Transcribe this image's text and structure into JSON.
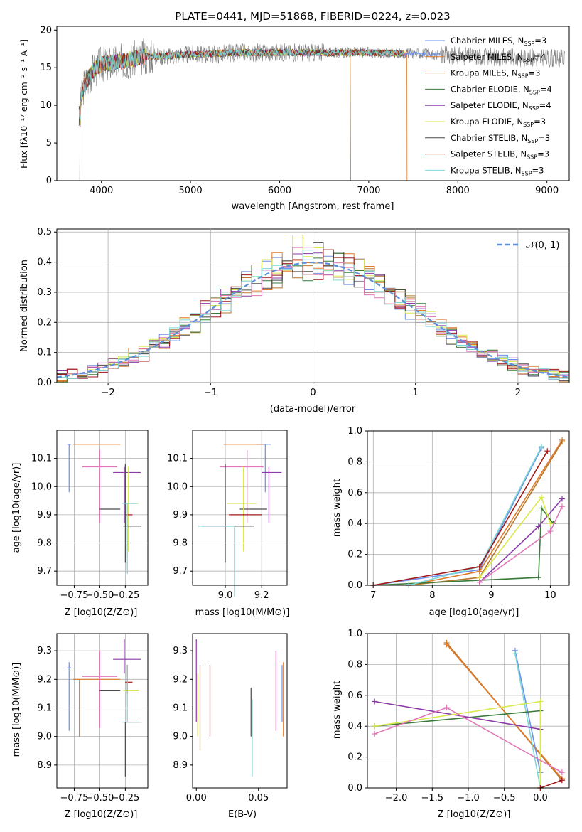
{
  "colors": {
    "c1": "#6b8fe8",
    "c2": "#b9a200",
    "c3": "#b9772a",
    "c4": "#3a7a3a",
    "c5": "#8c3aa8",
    "c6": "#d9e84a",
    "c7": "#4a4a4a",
    "c8": "#a01818",
    "c9": "#7fd8d8",
    "pink": "#e078b8",
    "orange": "#e07a2a",
    "gray": "#808080",
    "normal": "#5b8fd8"
  },
  "panel1": {
    "title": "PLATE=0441, MJD=51868, FIBERID=0224, z=0.023",
    "xlabel": "wavelength [Angstrom, rest frame]",
    "ylabel": "Flux [fλ10⁻¹⁷ erg cm⁻² s⁻¹ A⁻¹]",
    "xticks": [
      "4000",
      "5000",
      "6000",
      "7000",
      "8000",
      "9000"
    ],
    "yticks": [
      "0",
      "5",
      "10",
      "15",
      "20"
    ],
    "legend": [
      "Chabrier MILES, N_SSP=3",
      "Salpeter MILES, N_SSP=4",
      "Kroupa MILES, N_SSP=3",
      "Chabrier ELODIE, N_SSP=4",
      "Salpeter ELODIE, N_SSP=4",
      "Kroupa ELODIE, N_SSP=3",
      "Chabrier STELIB, N_SSP=3",
      "Salpeter STELIB, N_SSP=3",
      "Kroupa STELIB, N_SSP=3"
    ]
  },
  "panel2": {
    "xlabel": "(data-model)/error",
    "ylabel": "Normed distribution",
    "xticks": [
      "−2",
      "−1",
      "0",
      "1",
      "2"
    ],
    "yticks": [
      "0.0",
      "0.1",
      "0.2",
      "0.3",
      "0.4",
      "0.5"
    ],
    "legend": "𝒩(0, 1)"
  },
  "panel3": {
    "xlabel": "Z [log10(Z/Z⊙)]",
    "ylabel": "age  [log10(age/yr)]",
    "xticks": [
      "−0.75",
      "−0.50",
      "−0.25"
    ],
    "yticks": [
      "9.7",
      "9.8",
      "9.9",
      "10.0",
      "10.1"
    ]
  },
  "panel4": {
    "xlabel": "mass [log10(M/M⊙)]",
    "xticks": [
      "9.0",
      "9.2"
    ],
    "yticks": [
      "9.7",
      "9.8",
      "9.9",
      "10.0",
      "10.1"
    ]
  },
  "panel5": {
    "xlabel": "age  [log10(age/yr)]",
    "ylabel": "mass weight",
    "xticks": [
      "7",
      "8",
      "9",
      "10"
    ],
    "yticks": [
      "0.0",
      "0.2",
      "0.4",
      "0.6",
      "0.8",
      "1.0"
    ]
  },
  "panel6": {
    "xlabel": "Z [log10(Z/Z⊙)]",
    "ylabel": "mass [log10(M/M⊙)]",
    "xticks": [
      "−0.75",
      "−0.50",
      "−0.25"
    ],
    "yticks": [
      "8.9",
      "9.0",
      "9.1",
      "9.2",
      "9.3"
    ]
  },
  "panel7": {
    "xlabel": "E(B-V)",
    "xticks": [
      "0.00",
      "0.05"
    ],
    "yticks": [
      "8.9",
      "9.0",
      "9.1",
      "9.2",
      "9.3"
    ]
  },
  "panel8": {
    "xlabel": "Z [log10(Z/Z⊙)]",
    "ylabel": "mass weight",
    "xticks": [
      "−2.0",
      "−1.5",
      "−1.0",
      "−0.5",
      "0.0"
    ],
    "yticks": [
      "0.0",
      "0.2",
      "0.4",
      "0.6",
      "0.8",
      "1.0"
    ]
  },
  "chart_data": [
    {
      "type": "line",
      "title": "PLATE=0441, MJD=51868, FIBERID=0224, z=0.023",
      "xlabel": "wavelength [Angstrom, rest frame]",
      "ylabel": "Flux [fλ10⁻¹⁷ erg cm⁻² s⁻¹ A⁻¹]",
      "xlim": [
        3500,
        9250
      ],
      "ylim": [
        0,
        20.5
      ],
      "series": [
        {
          "name": "Chabrier MILES, N_SSP=3"
        },
        {
          "name": "Salpeter MILES, N_SSP=4"
        },
        {
          "name": "Kroupa MILES, N_SSP=3"
        },
        {
          "name": "Chabrier ELODIE, N_SSP=4"
        },
        {
          "name": "Salpeter ELODIE, N_SSP=4"
        },
        {
          "name": "Kroupa ELODIE, N_SSP=3"
        },
        {
          "name": "Chabrier STELIB, N_SSP=3"
        },
        {
          "name": "Salpeter STELIB, N_SSP=3"
        },
        {
          "name": "Kroupa STELIB, N_SSP=3"
        }
      ],
      "continuum": {
        "x": [
          3740,
          3800,
          3900,
          4000,
          4100,
          4200,
          4300,
          4500,
          4800,
          5000,
          5200,
          5500,
          6000,
          6500,
          7000,
          7400,
          7800,
          8200,
          8800,
          9200
        ],
        "y": [
          8.5,
          12.5,
          14.5,
          15.5,
          15.6,
          15.8,
          16.0,
          16.5,
          16.6,
          16.8,
          16.8,
          17.0,
          17.0,
          17.0,
          17.0,
          16.9,
          16.7,
          16.5,
          16.3,
          16.2
        ]
      },
      "cutoffs": {
        "kroupa_miles": 6800,
        "salpeter_miles": 7430
      },
      "legend_position": "upper right"
    },
    {
      "type": "bar",
      "xlabel": "(data-model)/error",
      "ylabel": "Normed distribution",
      "xlim": [
        -2.5,
        2.5
      ],
      "ylim": [
        0,
        0.51
      ],
      "bin_width": 0.1,
      "reference": {
        "name": "𝒩(0, 1)",
        "mu": 0,
        "sigma": 1
      },
      "series_count": 9,
      "legend_position": "upper right"
    },
    {
      "type": "scatter",
      "xlabel": "Z [log10(Z/Z⊙)]",
      "ylabel": "age  [log10(age/yr)]",
      "xlim": [
        -0.92,
        -0.03
      ],
      "ylim": [
        9.65,
        10.2
      ],
      "points": [
        {
          "x": -0.8,
          "y": 10.15,
          "xerr": [
            0.02,
            0.02
          ],
          "yerr": [
            0.17,
            0.0
          ]
        },
        {
          "x": -0.7,
          "y": 10.15,
          "xerr": [
            0.06,
            0.4
          ],
          "yerr": [
            0.0,
            0.0
          ]
        },
        {
          "x": -0.5,
          "y": 10.07,
          "xerr": [
            0.17,
            0.17
          ],
          "yerr": [
            0.2,
            0.06
          ]
        },
        {
          "x": -0.42,
          "y": 9.92,
          "xerr": [
            0.08,
            0.12
          ],
          "yerr": [
            0.0,
            0.0
          ]
        },
        {
          "x": -0.26,
          "y": 10.05,
          "xerr": [
            0.11,
            0.16
          ],
          "yerr": [
            0.18,
            0.02
          ]
        },
        {
          "x": -0.22,
          "y": 9.94,
          "xerr": [
            0.05,
            0.1
          ],
          "yerr": [
            0.17,
            0.13
          ]
        },
        {
          "x": -0.23,
          "y": 9.9,
          "xerr": [
            0.02,
            0.05
          ],
          "yerr": [
            0.0,
            0.0
          ]
        },
        {
          "x": -0.25,
          "y": 9.86,
          "xerr": [
            0.02,
            0.16
          ],
          "yerr": [
            0.13,
            0.22
          ]
        },
        {
          "x": -0.23,
          "y": 9.94,
          "xerr": [
            0.05,
            0.1
          ],
          "yerr": [
            0.25,
            0.0
          ]
        }
      ]
    },
    {
      "type": "scatter",
      "xlabel": "mass [log10(M/M⊙)]",
      "xlim": [
        8.82,
        9.34
      ],
      "ylim": [
        9.65,
        10.2
      ],
      "points": [
        {
          "x": 9.22,
          "y": 10.15,
          "xerr": [
            0.05,
            0.03
          ]
        },
        {
          "x": 9.1,
          "y": 10.15,
          "xerr": [
            0.11,
            0.11
          ]
        },
        {
          "x": 9.12,
          "y": 10.07,
          "xerr": [
            0.15,
            0.09
          ]
        },
        {
          "x": 9.18,
          "y": 9.92,
          "xerr": [
            0.1,
            0.05
          ]
        },
        {
          "x": 9.24,
          "y": 10.05,
          "xerr": [
            0.04,
            0.07
          ]
        },
        {
          "x": 9.1,
          "y": 9.94,
          "xerr": [
            0.09,
            0.07
          ]
        },
        {
          "x": 9.1,
          "y": 9.9,
          "xerr": [
            0.08,
            0.1
          ]
        },
        {
          "x": 9.0,
          "y": 9.86,
          "xerr": [
            0.13,
            0.16
          ]
        },
        {
          "x": 9.05,
          "y": 9.86,
          "xerr": [
            0.2,
            0.0
          ]
        }
      ]
    },
    {
      "type": "line",
      "xlabel": "age  [log10(age/yr)]",
      "ylabel": "mass weight",
      "xlim": [
        6.9,
        10.32
      ],
      "ylim": [
        0,
        1.0
      ],
      "series": [
        {
          "x": [
            7.0,
            8.8,
            9.85
          ],
          "y": [
            0.0,
            0.1,
            0.89
          ]
        },
        {
          "x": [
            7.6,
            8.8,
            10.2
          ],
          "y": [
            0.0,
            0.09,
            0.94
          ]
        },
        {
          "x": [
            7.6,
            8.8,
            10.2
          ],
          "y": [
            0.0,
            0.05,
            0.93
          ]
        },
        {
          "x": [
            7.0,
            9.8,
            9.85,
            10.05
          ],
          "y": [
            0.0,
            0.05,
            0.5,
            0.4
          ]
        },
        {
          "x": [
            8.8,
            9.8,
            10.2
          ],
          "y": [
            0.02,
            0.38,
            0.56
          ]
        },
        {
          "x": [
            8.8,
            9.85,
            10.0
          ],
          "y": [
            0.05,
            0.57,
            0.4
          ]
        },
        {
          "x": [
            7.6,
            8.8,
            9.85
          ],
          "y": [
            0.0,
            0.12,
            0.9
          ]
        },
        {
          "x": [
            7.0,
            8.8,
            9.95
          ],
          "y": [
            0.0,
            0.12,
            0.87
          ]
        },
        {
          "x": [
            8.8,
            10.0,
            10.2
          ],
          "y": [
            0.02,
            0.35,
            0.51
          ]
        }
      ]
    },
    {
      "type": "scatter",
      "xlabel": "Z [log10(Z/Z⊙)]",
      "ylabel": "mass [log10(M/M⊙)]",
      "xlim": [
        -0.92,
        -0.03
      ],
      "ylim": [
        8.82,
        9.36
      ],
      "points": [
        {
          "x": -0.8,
          "y": 9.24
        },
        {
          "x": -0.7,
          "y": 9.2
        },
        {
          "x": -0.5,
          "y": 9.21
        },
        {
          "x": -0.42,
          "y": 9.16
        },
        {
          "x": -0.26,
          "y": 9.27
        },
        {
          "x": -0.22,
          "y": 9.16
        },
        {
          "x": -0.23,
          "y": 9.19
        },
        {
          "x": -0.25,
          "y": 9.05
        },
        {
          "x": -0.23,
          "y": 9.05
        }
      ]
    },
    {
      "type": "scatter",
      "xlabel": "E(B-V)",
      "xlim": [
        -0.003,
        0.073
      ],
      "ylim": [
        8.82,
        9.36
      ],
      "points": [
        {
          "x": 0.0,
          "y": 9.3
        },
        {
          "x": 0.003,
          "y": 9.15
        },
        {
          "x": 0.011,
          "y": 9.13
        },
        {
          "x": 0.044,
          "y": 9.1
        },
        {
          "x": 0.045,
          "y": 9.0
        },
        {
          "x": 0.064,
          "y": 9.16
        },
        {
          "x": 0.07,
          "y": 9.13
        }
      ]
    },
    {
      "type": "line",
      "xlabel": "Z [log10(Z/Z⊙)]",
      "ylabel": "mass weight",
      "xlim": [
        -2.4,
        0.4
      ],
      "ylim": [
        0,
        1.0
      ],
      "series": [
        {
          "x": [
            -1.3,
            0.3
          ],
          "y": [
            0.94,
            0.05
          ]
        },
        {
          "x": [
            -1.3,
            0.3
          ],
          "y": [
            0.93,
            0.06
          ]
        },
        {
          "x": [
            -0.35,
            0.0
          ],
          "y": [
            0.89,
            0.1
          ]
        },
        {
          "x": [
            -0.35,
            0.0
          ],
          "y": [
            0.87,
            0.0
          ]
        },
        {
          "x": [
            -2.3,
            0.0
          ],
          "y": [
            0.4,
            0.5
          ]
        },
        {
          "x": [
            -2.3,
            0.0
          ],
          "y": [
            0.56,
            0.38
          ]
        },
        {
          "x": [
            -2.3,
            0.0,
            0.0
          ],
          "y": [
            0.4,
            0.56,
            0.0
          ]
        },
        {
          "x": [
            -2.3,
            -1.3,
            0.3
          ],
          "y": [
            0.35,
            0.52,
            0.1
          ]
        },
        {
          "x": [
            0.0,
            0.3
          ],
          "y": [
            0.0,
            0.05
          ]
        }
      ]
    }
  ]
}
